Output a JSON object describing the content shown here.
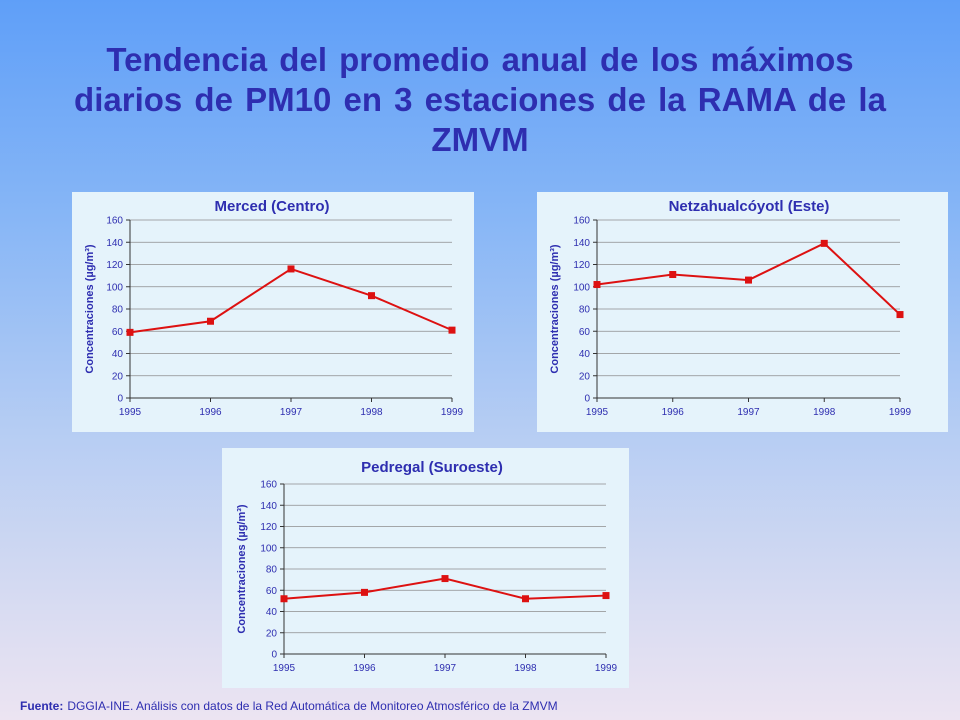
{
  "page_title": "Tendencia del promedio anual de los máximos diarios de PM10 en 3 estaciones de la RAMA de la ZMVM",
  "source": {
    "label": "Fuente:",
    "text": "DGGIA-INE.  Análisis con datos de la Red Automática de Monitoreo Atmosférico de la ZMVM"
  },
  "chart_data": [
    {
      "type": "line",
      "title": "Merced (Centro)",
      "ylabel": "Concentraciones (µg/m³)",
      "xlabel": "",
      "categories": [
        "1995",
        "1996",
        "1997",
        "1998",
        "1999"
      ],
      "series": [
        {
          "name": "PM10",
          "values": [
            59,
            69,
            116,
            92,
            61
          ]
        }
      ],
      "ylim": [
        0,
        160
      ],
      "yticks": [
        "0",
        "20",
        "40",
        "60",
        "80",
        "100",
        "120",
        "140",
        "160"
      ],
      "line_color": "#dd1111",
      "grid": true
    },
    {
      "type": "line",
      "title": "Netzahualcóyotl (Este)",
      "ylabel": "Concentraciones (µg/m³)",
      "xlabel": "",
      "categories": [
        "1995",
        "1996",
        "1997",
        "1998",
        "1999"
      ],
      "series": [
        {
          "name": "PM10",
          "values": [
            102,
            111,
            106,
            139,
            75
          ]
        }
      ],
      "ylim": [
        0,
        160
      ],
      "yticks": [
        "0",
        "20",
        "40",
        "60",
        "80",
        "100",
        "120",
        "140",
        "160"
      ],
      "line_color": "#dd1111",
      "grid": true
    },
    {
      "type": "line",
      "title": "Pedregal (Suroeste)",
      "ylabel": "Concentraciones (µg/m³)",
      "xlabel": "",
      "categories": [
        "1995",
        "1996",
        "1997",
        "1998",
        "1999"
      ],
      "series": [
        {
          "name": "PM10",
          "values": [
            52,
            58,
            71,
            52,
            55
          ]
        }
      ],
      "ylim": [
        0,
        160
      ],
      "yticks": [
        "0",
        "20",
        "40",
        "60",
        "80",
        "100",
        "120",
        "140",
        "160"
      ],
      "line_color": "#dd1111",
      "grid": true
    }
  ]
}
